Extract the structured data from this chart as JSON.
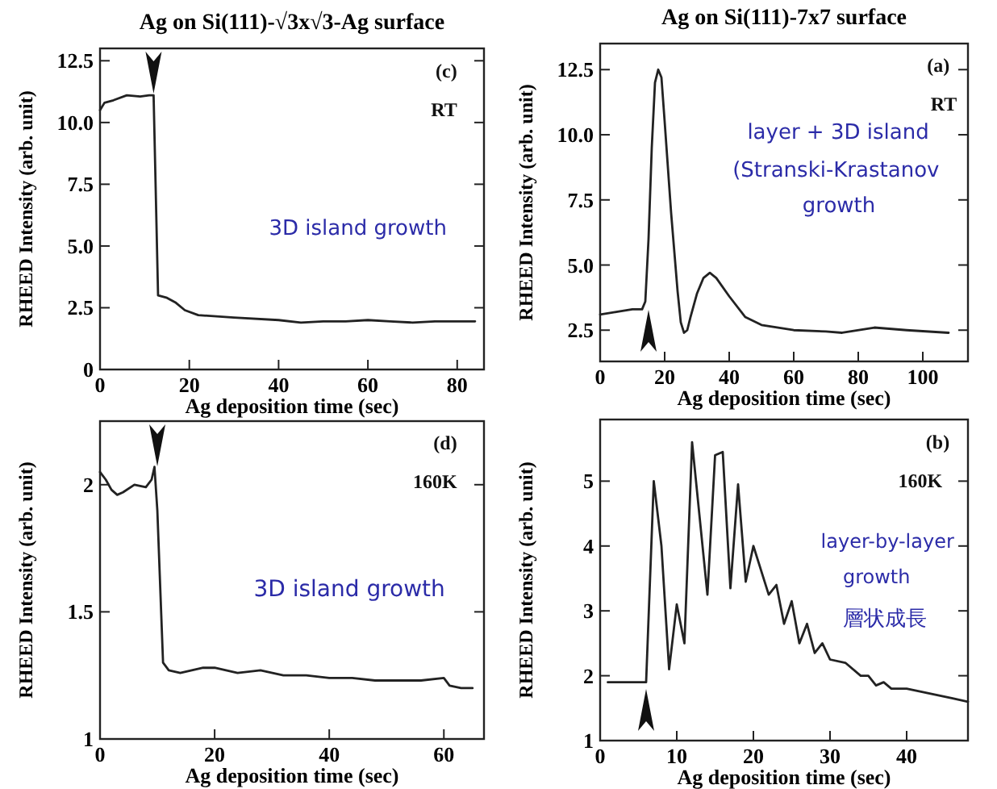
{
  "chart_data": [
    {
      "type": "line",
      "title": "Ag on Si(111)-√3x√3-Ag surface",
      "xlabel": "Ag deposition time (sec)",
      "ylabel": "RHEED Intensity (arb. unit)",
      "annotations": [
        "(c)",
        "RT",
        "3D island growth"
      ],
      "x": [
        0,
        1,
        3,
        6,
        9,
        11,
        12,
        13,
        15,
        17,
        19,
        22,
        30,
        40,
        45,
        50,
        55,
        60,
        65,
        70,
        75,
        84
      ],
      "values": [
        10.5,
        10.8,
        10.9,
        11.1,
        11.05,
        11.1,
        11.1,
        3.0,
        2.9,
        2.7,
        2.4,
        2.2,
        2.1,
        2.0,
        1.9,
        1.95,
        1.95,
        2.0,
        1.95,
        1.9,
        1.95,
        1.95
      ],
      "color": "#222222",
      "xlim": [
        0,
        86
      ],
      "ylim": [
        0,
        13
      ],
      "xticks": [
        0,
        20,
        40,
        60,
        80
      ],
      "yticks": [
        0,
        {
          "value": 2.5,
          "label": "2.5"
        },
        {
          "value": 5,
          "label": "5.0"
        },
        {
          "value": 7.5,
          "label": "7.5"
        },
        {
          "value": 10,
          "label": "10.0"
        },
        {
          "value": 12.5,
          "label": "12.5"
        }
      ],
      "grid": false,
      "legend": false
    },
    {
      "type": "line",
      "title": "Ag on Si(111)-7x7 surface",
      "xlabel": "Ag deposition time (sec)",
      "ylabel": "RHEED Intensity (arb. unit)",
      "annotations": [
        "(a)",
        "RT",
        "layer + 3D island",
        "(Stranski-Krastanov",
        "growth"
      ],
      "x": [
        0,
        5,
        10,
        13,
        14,
        15,
        16,
        17,
        18,
        19,
        20,
        22,
        24,
        25,
        26,
        27,
        28,
        30,
        32,
        34,
        36,
        40,
        45,
        50,
        60,
        70,
        75,
        85,
        95,
        108
      ],
      "values": [
        3.1,
        3.2,
        3.3,
        3.3,
        3.6,
        6,
        9.5,
        12,
        12.5,
        12.2,
        10.5,
        7,
        4,
        2.8,
        2.4,
        2.5,
        3.0,
        3.9,
        4.5,
        4.7,
        4.5,
        3.8,
        3.0,
        2.7,
        2.5,
        2.45,
        2.4,
        2.6,
        2.5,
        2.4
      ],
      "color": "#222222",
      "xlim": [
        0,
        114
      ],
      "ylim": [
        1.3,
        13.5
      ],
      "xticks": [
        0,
        20,
        40,
        60,
        80,
        100
      ],
      "yticks": [
        {
          "value": 2.5,
          "label": "2.5"
        },
        {
          "value": 5,
          "label": "5.0"
        },
        {
          "value": 7.5,
          "label": "7.5"
        },
        {
          "value": 10,
          "label": "10.0"
        },
        {
          "value": 12.5,
          "label": "12.5"
        }
      ],
      "grid": false,
      "legend": false
    },
    {
      "type": "line",
      "xlabel": "Ag deposition time (sec)",
      "ylabel": "RHEED Intensity (arb. unit)",
      "annotations": [
        "(d)",
        "160K",
        "3D island growth"
      ],
      "x": [
        0,
        1,
        2,
        3,
        4,
        6,
        8,
        9,
        9.5,
        10,
        11,
        12,
        14,
        16,
        18,
        20,
        24,
        28,
        32,
        36,
        40,
        44,
        48,
        52,
        56,
        60,
        61,
        63,
        65
      ],
      "values": [
        2.05,
        2.02,
        1.98,
        1.96,
        1.97,
        2.0,
        1.99,
        2.02,
        2.07,
        1.9,
        1.3,
        1.27,
        1.26,
        1.27,
        1.28,
        1.28,
        1.26,
        1.27,
        1.25,
        1.25,
        1.24,
        1.24,
        1.23,
        1.23,
        1.23,
        1.24,
        1.21,
        1.2,
        1.2
      ],
      "color": "#222222",
      "xlim": [
        0,
        67
      ],
      "ylim": [
        1,
        2.25
      ],
      "xticks": [
        0,
        20,
        40,
        60
      ],
      "yticks": [
        1,
        1.5,
        2
      ],
      "grid": false,
      "legend": false
    },
    {
      "type": "line",
      "xlabel": "Ag deposition time (sec)",
      "ylabel": "RHEED Intensity (arb. unit)",
      "annotations": [
        "(b)",
        "160K",
        "layer-by-layer",
        "growth",
        "層状成長"
      ],
      "x": [
        1,
        6,
        7,
        8,
        9,
        10,
        11,
        12,
        14,
        15,
        16,
        17,
        18,
        19,
        20,
        22,
        23,
        24,
        25,
        26,
        27,
        28,
        29,
        30,
        32,
        34,
        35,
        36,
        37,
        38,
        40,
        42,
        44,
        46,
        48
      ],
      "values": [
        1.9,
        1.9,
        5.0,
        4.0,
        2.1,
        3.1,
        2.5,
        5.6,
        3.25,
        5.4,
        5.45,
        3.35,
        4.95,
        3.45,
        4.0,
        3.25,
        3.4,
        2.8,
        3.15,
        2.5,
        2.8,
        2.35,
        2.5,
        2.25,
        2.2,
        2.0,
        2.0,
        1.85,
        1.9,
        1.8,
        1.8,
        1.75,
        1.7,
        1.65,
        1.6
      ],
      "color": "#222222",
      "xlim": [
        0,
        48
      ],
      "ylim": [
        1,
        5.95
      ],
      "xticks": [
        0,
        10,
        20,
        30,
        40
      ],
      "yticks": [
        1,
        2,
        3,
        4,
        5
      ],
      "grid": false,
      "legend": false
    }
  ]
}
